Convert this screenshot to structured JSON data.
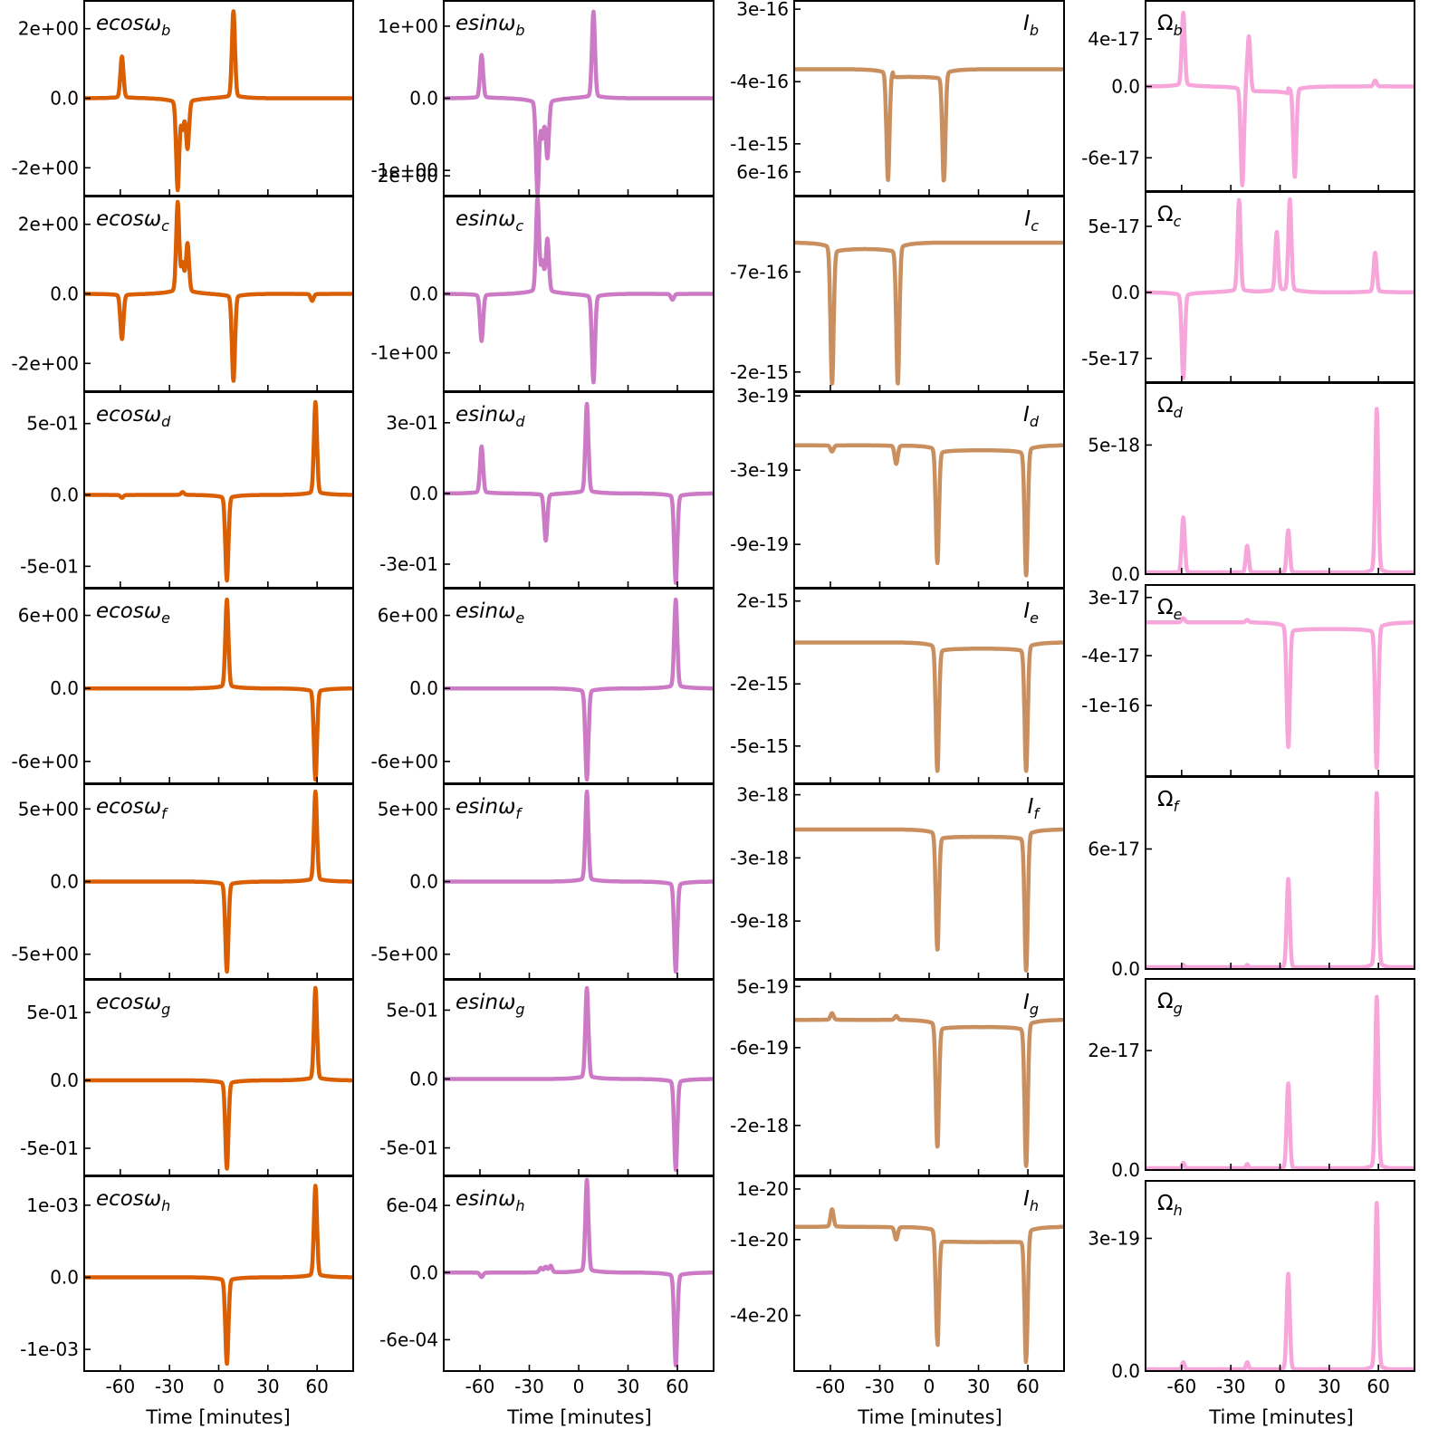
{
  "figure": {
    "xlabel": "Time [minutes]",
    "x_ticks": [
      -60,
      -30,
      0,
      30,
      60
    ],
    "x_tick_labels": [
      "-60",
      "-30",
      "0",
      "30",
      "60"
    ],
    "xlim": [
      -82,
      82
    ]
  },
  "colors": {
    "ecos": "#d95f02",
    "esin": "#cc79c6",
    "I": "#c98f5e",
    "Omega": "#f7a6dc",
    "axis": "#000000"
  },
  "chart_data": [
    {
      "type": "line",
      "column": "ecos",
      "planet": "b",
      "title_prefix": "ecosω",
      "title_sub": "b",
      "peaks": [
        [
          -59,
          1.2
        ],
        [
          -25,
          -2.6
        ],
        [
          -22,
          -0.8
        ],
        [
          -19,
          -1.4
        ],
        [
          9,
          2.5
        ]
      ],
      "ylim": [
        -2.8,
        2.8
      ],
      "ticks": [
        2,
        0,
        -2
      ],
      "tick_labels": [
        "2e+00",
        "0.0",
        "-2e+00"
      ]
    },
    {
      "type": "line",
      "column": "esin",
      "planet": "b",
      "title_prefix": "esinω",
      "title_sub": "b",
      "peaks": [
        [
          -59,
          0.6
        ],
        [
          -25,
          -1.3
        ],
        [
          -22,
          -0.5
        ],
        [
          -19,
          -0.8
        ],
        [
          9,
          1.2
        ]
      ],
      "ylim": [
        -1.35,
        1.35
      ],
      "ticks": [
        1,
        0,
        -1
      ],
      "tick_labels": [
        "1e+00",
        "0.0",
        "-1e+00"
      ]
    },
    {
      "type": "line",
      "column": "I",
      "planet": "b",
      "title_prefix": "I",
      "title_sub": "b",
      "baseline": -2.8e-16,
      "curve": [
        -22,
        9,
        -3.5e-16
      ],
      "peaks": [
        [
          -25,
          -1.35e-15
        ],
        [
          9,
          -1.35e-15
        ]
      ],
      "ylim": [
        -1.5e-15,
        3.8e-16
      ],
      "ticks": [
        3e-16,
        -4e-16,
        -1e-15
      ],
      "tick_labels": [
        "3e-16",
        "-4e-16",
        "-1e-15"
      ]
    },
    {
      "type": "line",
      "column": "Omega",
      "planet": "b",
      "title_prefix": "Ω",
      "title_sub": "b",
      "peaks": [
        [
          -59,
          6.2e-17
        ],
        [
          -19,
          4.8e-17
        ],
        [
          58,
          5e-18
        ]
      ],
      "segments": [
        [
          -20,
          5,
          -4e-18
        ]
      ],
      "dips": [
        [
          -23,
          -8.4e-17
        ],
        [
          9,
          -7.6e-17
        ]
      ],
      "ylim": [
        -8.8e-17,
        7.2e-17
      ],
      "ticks": [
        4e-17,
        0,
        -6e-17
      ],
      "tick_labels": [
        "4e-17",
        "0.0",
        "-6e-17"
      ]
    },
    {
      "type": "line",
      "column": "ecos",
      "planet": "c",
      "title_prefix": "ecosω",
      "title_sub": "c",
      "peaks": [
        [
          -59,
          -1.3
        ],
        [
          -25,
          2.6
        ],
        [
          -22,
          0.8
        ],
        [
          -19,
          1.4
        ],
        [
          9,
          -2.5
        ],
        [
          57,
          -0.2
        ]
      ],
      "ylim": [
        -2.8,
        2.8
      ],
      "ticks": [
        2,
        0,
        -2
      ],
      "tick_labels": [
        "2e+00",
        "0.0",
        "-2e+00"
      ]
    },
    {
      "type": "line",
      "column": "esin",
      "planet": "c",
      "title_prefix": "esinω",
      "title_sub": "c",
      "peaks": [
        [
          -59,
          -0.8
        ],
        [
          -25,
          1.6
        ],
        [
          -22,
          0.5
        ],
        [
          -19,
          0.9
        ],
        [
          9,
          -1.5
        ],
        [
          57,
          -0.1
        ]
      ],
      "ylim": [
        -1.65,
        1.65
      ],
      "ticks": [
        2,
        0,
        -1
      ],
      "tick_labels": [
        "2e+00",
        "0.0",
        "-1e+00"
      ]
    },
    {
      "type": "line",
      "column": "I",
      "planet": "c",
      "title_prefix": "I",
      "title_sub": "c",
      "baseline": -3.2e-16,
      "curve": [
        -59,
        -19,
        -4e-16
      ],
      "peaks": [
        [
          -59,
          -2.15e-15
        ],
        [
          -19,
          -2.15e-15
        ]
      ],
      "ylim": [
        -2.25e-15,
        2.8e-16
      ],
      "ticks": [
        6e-16,
        -7e-16,
        -2e-15
      ],
      "tick_labels": [
        "6e-16",
        "-7e-16",
        "-2e-15"
      ]
    },
    {
      "type": "line",
      "column": "Omega",
      "planet": "c",
      "title_prefix": "Ω",
      "title_sub": "c",
      "peaks": [
        [
          -25,
          7e-17
        ],
        [
          -19,
          5e-17
        ],
        [
          -2,
          4.5e-17
        ],
        [
          6,
          7e-17
        ],
        [
          58,
          3e-17
        ]
      ],
      "dips": [
        [
          -59,
          -6.5e-17
        ],
        [
          -19,
          -5e-17
        ]
      ],
      "ylim": [
        -6.8e-17,
        7.6e-17
      ],
      "ticks": [
        5e-17,
        0,
        -5e-17
      ],
      "tick_labels": [
        "5e-17",
        "0.0",
        "-5e-17"
      ]
    },
    {
      "type": "line",
      "column": "ecos",
      "planet": "d",
      "title_prefix": "ecosω",
      "title_sub": "d",
      "peaks": [
        [
          -59,
          -0.02
        ],
        [
          -22,
          0.02
        ],
        [
          5,
          -0.6
        ],
        [
          59,
          0.65
        ]
      ],
      "ylim": [
        -0.65,
        0.72
      ],
      "ticks": [
        0.5,
        0,
        -0.5
      ],
      "tick_labels": [
        "5e-01",
        "0.0",
        "-5e-01"
      ]
    },
    {
      "type": "line",
      "column": "esin",
      "planet": "d",
      "title_prefix": "esinω",
      "title_sub": "d",
      "peaks": [
        [
          -59,
          0.2
        ],
        [
          -20,
          -0.2
        ],
        [
          5,
          0.38
        ],
        [
          59,
          -0.38
        ]
      ],
      "ylim": [
        -0.4,
        0.43
      ],
      "ticks": [
        0.3,
        0,
        -0.3
      ],
      "tick_labels": [
        "3e-01",
        "0.0",
        "-3e-01"
      ]
    },
    {
      "type": "line",
      "column": "I",
      "planet": "d",
      "title_prefix": "I",
      "title_sub": "d",
      "baseline": -1e-19,
      "curve": [
        5,
        59,
        -1.4e-19
      ],
      "peaks": [
        [
          -59,
          -1.5e-19
        ],
        [
          -20,
          -2.5e-19
        ],
        [
          5,
          -1.05e-18
        ],
        [
          59,
          -1.15e-18
        ]
      ],
      "ylim": [
        -1.25e-18,
        3.3e-19
      ],
      "ticks": [
        3e-19,
        -3e-19,
        -9e-19
      ],
      "tick_labels": [
        "3e-19",
        "-3e-19",
        "-9e-19"
      ]
    },
    {
      "type": "line",
      "column": "Omega",
      "planet": "d",
      "title_prefix": "Ω",
      "title_sub": "d",
      "peaks": [
        [
          -59,
          2.2e-18
        ],
        [
          -20,
          1.1e-18
        ],
        [
          5,
          1.7e-18
        ],
        [
          59,
          6.4e-18
        ]
      ],
      "ylim": [
        0,
        7.4e-18
      ],
      "ticks": [
        5e-18,
        0
      ],
      "tick_labels": [
        "5e-18",
        "0.0"
      ]
    },
    {
      "type": "line",
      "column": "ecos",
      "planet": "e",
      "title_prefix": "ecosω",
      "title_sub": "e",
      "peaks": [
        [
          5,
          7.3
        ],
        [
          59,
          -7.5
        ]
      ],
      "ylim": [
        -7.8,
        8.2
      ],
      "ticks": [
        6,
        0,
        -6
      ],
      "tick_labels": [
        "6e+00",
        "0.0",
        "-6e+00"
      ]
    },
    {
      "type": "line",
      "column": "esin",
      "planet": "e",
      "title_prefix": "esinω",
      "title_sub": "e",
      "peaks": [
        [
          5,
          -7.5
        ],
        [
          59,
          7.3
        ]
      ],
      "ylim": [
        -7.8,
        8.2
      ],
      "ticks": [
        6,
        0,
        -6
      ],
      "tick_labels": [
        "6e+00",
        "0.0",
        "-6e+00"
      ]
    },
    {
      "type": "line",
      "column": "I",
      "planet": "e",
      "title_prefix": "I",
      "title_sub": "e",
      "baseline": -0.0,
      "curve": [
        5,
        59,
        -3e-16
      ],
      "peaks": [
        [
          5,
          -6.2e-15
        ],
        [
          59,
          -6.2e-15
        ]
      ],
      "ylim": [
        -6.8e-15,
        2.6e-15
      ],
      "ticks": [
        2e-15,
        -2e-15,
        -5e-15
      ],
      "tick_labels": [
        "2e-15",
        "-2e-15",
        "-5e-15"
      ]
    },
    {
      "type": "line",
      "column": "Omega",
      "planet": "e",
      "title_prefix": "Ω",
      "title_sub": "e",
      "peaks": [
        [
          -59,
          5e-18
        ],
        [
          -20,
          3e-18
        ]
      ],
      "dips": [
        [
          5,
          -1.5e-16
        ],
        [
          59,
          -1.75e-16
        ]
      ],
      "curve": [
        5,
        59,
        -8e-18
      ],
      "ylim": [
        -1.85e-16,
        4.5e-17
      ],
      "ticks": [
        3e-17,
        -4e-17,
        -1e-16
      ],
      "tick_labels": [
        "3e-17",
        "-4e-17",
        "-1e-16"
      ]
    },
    {
      "type": "line",
      "column": "ecos",
      "planet": "f",
      "title_prefix": "ecosω",
      "title_sub": "f",
      "peaks": [
        [
          5,
          -6.2
        ],
        [
          59,
          6.2
        ]
      ],
      "ylim": [
        -6.7,
        6.7
      ],
      "ticks": [
        5,
        0,
        -5
      ],
      "tick_labels": [
        "5e+00",
        "0.0",
        "-5e+00"
      ]
    },
    {
      "type": "line",
      "column": "esin",
      "planet": "f",
      "title_prefix": "esinω",
      "title_sub": "f",
      "peaks": [
        [
          5,
          6.2
        ],
        [
          59,
          -6.2
        ]
      ],
      "ylim": [
        -6.7,
        6.7
      ],
      "ticks": [
        5,
        0,
        -5
      ],
      "tick_labels": [
        "5e+00",
        "0.0",
        "-5e+00"
      ]
    },
    {
      "type": "line",
      "column": "I",
      "planet": "f",
      "title_prefix": "I",
      "title_sub": "f",
      "baseline": -3e-19,
      "curve": [
        5,
        59,
        -1e-18
      ],
      "peaks": [
        [
          5,
          -1.17e-17
        ],
        [
          59,
          -1.37e-17
        ]
      ],
      "ylim": [
        -1.45e-17,
        4e-18
      ],
      "ticks": [
        3e-18,
        -3e-18,
        -9e-18
      ],
      "tick_labels": [
        "3e-18",
        "-3e-18",
        "-9e-18"
      ]
    },
    {
      "type": "line",
      "column": "Omega",
      "planet": "f",
      "title_prefix": "Ω",
      "title_sub": "f",
      "peaks": [
        [
          -59,
          2e-18
        ],
        [
          -20,
          2e-18
        ],
        [
          5,
          4.5e-17
        ],
        [
          59,
          8.8e-17
        ]
      ],
      "ylim": [
        0,
        9.6e-17
      ],
      "ticks": [
        6e-17,
        0
      ],
      "tick_labels": [
        "6e-17",
        "0.0"
      ]
    },
    {
      "type": "line",
      "column": "ecos",
      "planet": "g",
      "title_prefix": "ecosω",
      "title_sub": "g",
      "peaks": [
        [
          5,
          -0.65
        ],
        [
          59,
          0.68
        ]
      ],
      "ylim": [
        -0.7,
        0.74
      ],
      "ticks": [
        0.5,
        0,
        -0.5
      ],
      "tick_labels": [
        "5e-01",
        "0.0",
        "-5e-01"
      ]
    },
    {
      "type": "line",
      "column": "esin",
      "planet": "g",
      "title_prefix": "esinω",
      "title_sub": "g",
      "peaks": [
        [
          5,
          0.66
        ],
        [
          59,
          -0.66
        ]
      ],
      "ylim": [
        -0.7,
        0.72
      ],
      "ticks": [
        0.5,
        0,
        -0.5
      ],
      "tick_labels": [
        "5e-01",
        "0.0",
        "-5e-01"
      ]
    },
    {
      "type": "line",
      "column": "I",
      "planet": "g",
      "title_prefix": "I",
      "title_sub": "g",
      "baseline": -1e-19,
      "curve": [
        5,
        59,
        -2.3e-19
      ],
      "peaks": [
        [
          -59,
          2e-20
        ],
        [
          -20,
          -3e-20
        ],
        [
          5,
          -2.38e-18
        ],
        [
          59,
          -2.73e-18
        ]
      ],
      "ylim": [
        -2.9e-18,
        6.2e-19
      ],
      "ticks": [
        5e-19,
        -6e-19,
        -2e-18
      ],
      "tick_labels": [
        "5e-19",
        "-6e-19",
        "-2e-18"
      ]
    },
    {
      "type": "line",
      "column": "Omega",
      "planet": "g",
      "title_prefix": "Ω",
      "title_sub": "g",
      "peaks": [
        [
          -59,
          1.2e-18
        ],
        [
          -20,
          1e-18
        ],
        [
          5,
          1.45e-17
        ],
        [
          59,
          2.9e-17
        ]
      ],
      "ylim": [
        0,
        3.2e-17
      ],
      "ticks": [
        2e-17,
        0
      ],
      "tick_labels": [
        "2e-17",
        "0.0"
      ]
    },
    {
      "type": "line",
      "column": "ecos",
      "planet": "h",
      "title_prefix": "ecosω",
      "title_sub": "h",
      "peaks": [
        [
          5,
          -0.0012
        ],
        [
          59,
          0.00127
        ]
      ],
      "ylim": [
        -0.0013,
        0.0014
      ],
      "ticks": [
        0.001,
        0,
        -0.001
      ],
      "tick_labels": [
        "1e-03",
        "0.0",
        "-1e-03"
      ]
    },
    {
      "type": "line",
      "column": "esin",
      "planet": "h",
      "title_prefix": "esinω",
      "title_sub": "h",
      "peaks": [
        [
          -59,
          -4e-05
        ],
        [
          -23,
          4e-05
        ],
        [
          -20,
          5e-05
        ],
        [
          -17,
          6e-05
        ],
        [
          5,
          0.00083
        ],
        [
          59,
          -0.00083
        ]
      ],
      "ylim": [
        -0.00088,
        0.00086
      ],
      "ticks": [
        0.0006,
        0,
        -0.0006
      ],
      "tick_labels": [
        "6e-04",
        "0.0",
        "-6e-04"
      ]
    },
    {
      "type": "line",
      "column": "I",
      "planet": "h",
      "title_prefix": "I",
      "title_sub": "h",
      "baseline": -5e-21,
      "curve": [
        5,
        59,
        -1.1e-20
      ],
      "peaks": [
        [
          -59,
          2e-21
        ],
        [
          -20,
          -1e-20
        ],
        [
          5,
          -5e-20
        ],
        [
          59,
          -5.7e-20
        ]
      ],
      "ylim": [
        -6.2e-20,
        1.5e-20
      ],
      "ticks": [
        1e-20,
        -1e-20,
        -4e-20
      ],
      "tick_labels": [
        "1e-20",
        "-1e-20",
        "-4e-20"
      ]
    },
    {
      "type": "line",
      "column": "Omega",
      "planet": "h",
      "title_prefix": "Ω",
      "title_sub": "h",
      "peaks": [
        [
          -59,
          2e-20
        ],
        [
          -20,
          2e-20
        ],
        [
          5,
          2.2e-19
        ],
        [
          59,
          3.8e-19
        ]
      ],
      "ylim": [
        0,
        4.3e-19
      ],
      "ticks": [
        3e-19,
        0
      ],
      "tick_labels": [
        "3e-19",
        "0.0"
      ]
    }
  ]
}
